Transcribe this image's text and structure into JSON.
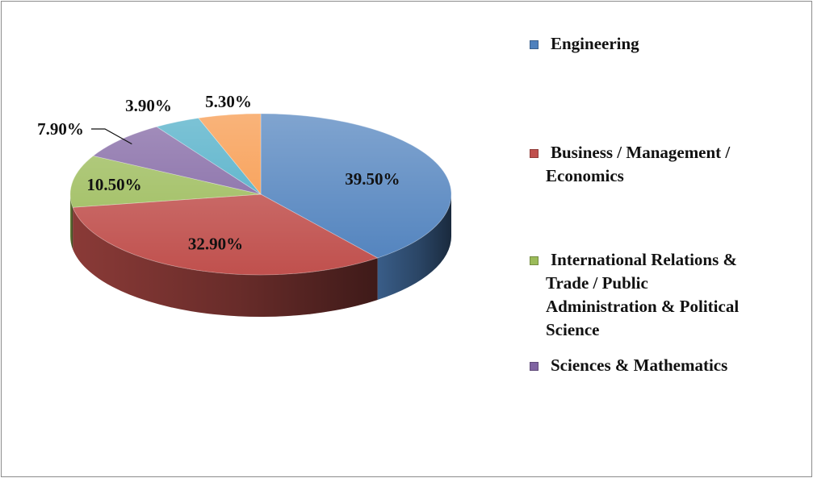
{
  "chart_data": {
    "type": "pie",
    "title": "",
    "categories": [
      "Engineering",
      "Business / Management / Economics",
      "International Relations & Trade / Public Administration & Political Science",
      "Sciences & Mathematics",
      "",
      ""
    ],
    "values": [
      39.5,
      32.9,
      10.5,
      7.9,
      3.9,
      5.3
    ],
    "data_labels": [
      "39.50%",
      "32.90%",
      "10.50%",
      "7.90%",
      "3.90%",
      "5.30%"
    ],
    "colors": [
      "#4f81bd",
      "#c0504d",
      "#9bbb59",
      "#8064a2",
      "#4bacc6",
      "#f79646"
    ],
    "style": "3d",
    "legend_position": "right"
  },
  "legend": [
    {
      "label": "Engineering",
      "color": "#4f81bd"
    },
    {
      "label": "Business / Management /\nEconomics",
      "color": "#c0504d"
    },
    {
      "label": "International Relations &\nTrade / Public\nAdministration & Political\nScience",
      "color": "#9bbb59"
    },
    {
      "label": "Sciences & Mathematics",
      "color": "#8064a2"
    }
  ]
}
